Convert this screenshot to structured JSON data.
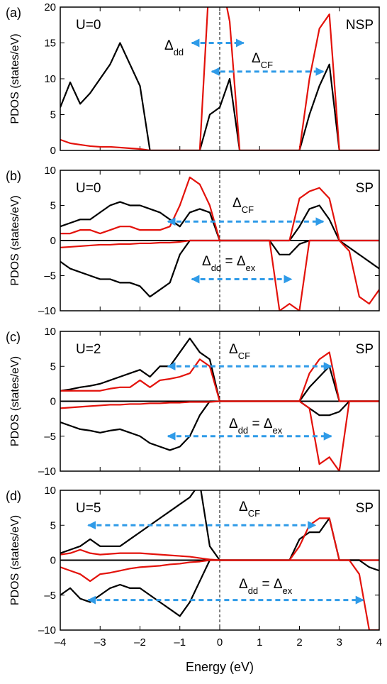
{
  "chart_data": [
    {
      "type": "line",
      "panel_label": "(a)",
      "text_left": "U=0",
      "text_right": "NSP",
      "ylabel": "PDOS (states/eV)",
      "x": [
        -4,
        -3.75,
        -3.5,
        -3.25,
        -3,
        -2.75,
        -2.5,
        -2.25,
        -2,
        -1.75,
        -1.5,
        -1.25,
        -1,
        -0.75,
        -0.5,
        -0.25,
        0,
        0.25,
        0.5,
        0.75,
        1,
        1.25,
        1.5,
        1.75,
        2,
        2.25,
        2.5,
        2.75,
        3,
        3.25,
        3.5,
        3.75,
        4
      ],
      "series": [
        {
          "color": "#000000",
          "values": [
            6,
            9.5,
            6.5,
            8,
            10,
            12,
            15,
            12,
            9,
            0,
            0,
            0,
            0,
            0,
            0,
            5,
            6,
            10,
            0,
            0,
            0,
            0,
            0,
            0,
            0,
            5,
            9,
            12,
            0,
            0,
            0,
            0,
            0
          ]
        },
        {
          "color": "#e3120b",
          "values": [
            1.5,
            1,
            0.8,
            0.6,
            0.5,
            0.5,
            0.4,
            0.3,
            0.2,
            0,
            0,
            0,
            0,
            0,
            0,
            25,
            25,
            18,
            0,
            0,
            0,
            0,
            0,
            0,
            0,
            10,
            17,
            19,
            0,
            0,
            0,
            0,
            0
          ]
        }
      ],
      "arrows": [
        {
          "label": [
            {
              "text": "Δ"
            },
            {
              "text": "dd",
              "sub": true
            }
          ],
          "x": [
            -0.7,
            0.6
          ],
          "y": 15
        },
        {
          "label": [
            {
              "text": "Δ"
            },
            {
              "text": "CF",
              "sub": true
            }
          ],
          "x": [
            -0.2,
            2.6
          ],
          "y": 11
        }
      ],
      "vline": 0,
      "xlim": [
        -4,
        4
      ],
      "xticks": [
        -4,
        -3,
        -2,
        -1,
        0,
        1,
        2,
        3,
        4
      ],
      "ylim": [
        0,
        20
      ],
      "yticks": [
        0,
        5,
        10,
        15,
        20
      ]
    },
    {
      "type": "line",
      "panel_label": "(b)",
      "text_left": "U=0",
      "text_right": "SP",
      "ylabel": "PDOS (states/eV)",
      "x": [
        -4,
        -3.75,
        -3.5,
        -3.25,
        -3,
        -2.75,
        -2.5,
        -2.25,
        -2,
        -1.75,
        -1.5,
        -1.25,
        -1,
        -0.75,
        -0.5,
        -0.25,
        0,
        0.25,
        0.5,
        0.75,
        1,
        1.25,
        1.5,
        1.75,
        2,
        2.25,
        2.5,
        2.75,
        3,
        3.25,
        3.5,
        3.75,
        4
      ],
      "series": [
        {
          "color": "#000000",
          "values": [
            2,
            2.5,
            3,
            3,
            4,
            5,
            5.5,
            5,
            5,
            4.5,
            4,
            3,
            2,
            4,
            4.5,
            4,
            0,
            0,
            0,
            0,
            0,
            0,
            0,
            0,
            2,
            4.5,
            5,
            3,
            0,
            0,
            0,
            0,
            0
          ]
        },
        {
          "color": "#e3120b",
          "values": [
            1,
            1,
            1.5,
            1.5,
            1,
            1.5,
            2,
            2,
            1.5,
            1.5,
            1.5,
            2,
            5,
            9,
            8,
            5,
            0,
            0,
            0,
            0,
            0,
            0,
            0,
            0,
            6,
            7,
            7.5,
            6,
            0,
            0,
            0,
            0,
            0
          ]
        },
        {
          "color": "#000000",
          "values": [
            -3,
            -4,
            -4.5,
            -5,
            -5.5,
            -5.5,
            -6,
            -6,
            -6.5,
            -8,
            -7,
            -6,
            -2,
            0,
            0,
            0,
            0,
            0,
            0,
            0,
            0,
            0,
            -2,
            -2,
            -0.5,
            0,
            0,
            0,
            0,
            -1,
            -2,
            -3,
            -4
          ]
        },
        {
          "color": "#e3120b",
          "values": [
            -1,
            -0.9,
            -0.8,
            -0.7,
            -0.6,
            -0.6,
            -0.5,
            -0.5,
            -0.4,
            -0.4,
            -0.3,
            -0.3,
            -0.2,
            0,
            0,
            0,
            0,
            0,
            0,
            0,
            0,
            0,
            -10,
            -9,
            -10,
            0,
            0,
            0,
            0,
            -1.5,
            -8,
            -9,
            -7
          ]
        }
      ],
      "arrows": [
        {
          "label": [
            {
              "text": "Δ"
            },
            {
              "text": "CF",
              "sub": true
            }
          ],
          "x": [
            -1.3,
            2.6
          ],
          "y": 2.7
        },
        {
          "label": [
            {
              "text": "Δ"
            },
            {
              "text": "dd",
              "sub": true
            },
            {
              "text": " = Δ"
            },
            {
              "text": "ex",
              "sub": true
            }
          ],
          "x": [
            -0.7,
            1.8
          ],
          "y": -5.5
        }
      ],
      "vline": 0,
      "xlim": [
        -4,
        4
      ],
      "xticks": [
        -4,
        -3,
        -2,
        -1,
        0,
        1,
        2,
        3,
        4
      ],
      "ylim": [
        -10,
        10
      ],
      "yticks": [
        {
          "value": -10,
          "label": "–10"
        },
        {
          "value": -5,
          "label": "–5"
        },
        0,
        5,
        10
      ]
    },
    {
      "type": "line",
      "panel_label": "(c)",
      "text_left": "U=2",
      "text_right": "SP",
      "ylabel": "PDOS (states/eV)",
      "x": [
        -4,
        -3.75,
        -3.5,
        -3.25,
        -3,
        -2.75,
        -2.5,
        -2.25,
        -2,
        -1.75,
        -1.5,
        -1.25,
        -1,
        -0.75,
        -0.5,
        -0.25,
        0,
        0.25,
        0.5,
        0.75,
        1,
        1.25,
        1.5,
        1.75,
        2,
        2.25,
        2.5,
        2.75,
        3,
        3.25,
        3.5,
        3.75,
        4
      ],
      "series": [
        {
          "color": "#000000",
          "values": [
            1.5,
            1.7,
            2,
            2.2,
            2.5,
            3,
            3.5,
            4,
            4.5,
            3.5,
            5,
            5,
            7,
            9,
            7,
            6,
            0,
            0,
            0,
            0,
            0,
            0,
            0,
            0,
            0,
            2,
            3.5,
            5,
            0,
            0,
            0,
            0,
            0
          ]
        },
        {
          "color": "#e3120b",
          "values": [
            1.5,
            1.5,
            1.5,
            1.5,
            1.5,
            1.8,
            2,
            2,
            3,
            2,
            3,
            3.2,
            3.5,
            4,
            6,
            5,
            0,
            0,
            0,
            0,
            0,
            0,
            0,
            0,
            0,
            4,
            6,
            7,
            0,
            0,
            0,
            0,
            0
          ]
        },
        {
          "color": "#000000",
          "values": [
            -3,
            -3.5,
            -4,
            -4.2,
            -4.5,
            -4.2,
            -4,
            -4.5,
            -5,
            -6,
            -6.5,
            -7,
            -6.5,
            -5,
            -2,
            0,
            0,
            0,
            0,
            0,
            0,
            0,
            0,
            0,
            0,
            -1,
            -2,
            -2,
            -1.5,
            0,
            0,
            0,
            0
          ]
        },
        {
          "color": "#e3120b",
          "values": [
            -1,
            -0.9,
            -0.8,
            -0.7,
            -0.6,
            -0.5,
            -0.5,
            -0.4,
            -0.4,
            -0.3,
            -0.3,
            -0.2,
            -0.2,
            -0.1,
            -0.1,
            -0.1,
            0,
            0,
            0,
            0,
            0,
            0,
            0,
            0,
            0,
            -1,
            -9,
            -8,
            -10,
            0,
            0,
            0,
            0
          ]
        }
      ],
      "arrows": [
        {
          "label": [
            {
              "text": "Δ"
            },
            {
              "text": "CF",
              "sub": true
            }
          ],
          "x": [
            -1.3,
            2.8
          ],
          "y": 5
        },
        {
          "label": [
            {
              "text": "Δ"
            },
            {
              "text": "dd",
              "sub": true
            },
            {
              "text": " = Δ"
            },
            {
              "text": "ex",
              "sub": true
            }
          ],
          "x": [
            -1.3,
            2.8
          ],
          "y": -5
        }
      ],
      "vline": 0,
      "xlim": [
        -4,
        4
      ],
      "xticks": [
        -4,
        -3,
        -2,
        -1,
        0,
        1,
        2,
        3,
        4
      ],
      "ylim": [
        -10,
        10
      ],
      "yticks": [
        {
          "value": -10,
          "label": "–10"
        },
        {
          "value": -5,
          "label": "–5"
        },
        0,
        5,
        10
      ]
    },
    {
      "type": "line",
      "panel_label": "(d)",
      "text_left": "U=5",
      "text_right": "SP",
      "ylabel": "PDOS (states/eV)",
      "xlabel": "Energy (eV)",
      "x": [
        -4,
        -3.75,
        -3.5,
        -3.25,
        -3,
        -2.75,
        -2.5,
        -2.25,
        -2,
        -1.75,
        -1.5,
        -1.25,
        -1,
        -0.75,
        -0.5,
        -0.25,
        0,
        0.25,
        0.5,
        0.75,
        1,
        1.25,
        1.5,
        1.75,
        2,
        2.25,
        2.5,
        2.75,
        3,
        3.25,
        3.5,
        3.75,
        4
      ],
      "series": [
        {
          "color": "#000000",
          "values": [
            1,
            1.5,
            2,
            3,
            2,
            2,
            2,
            3,
            4,
            5,
            6,
            7,
            8,
            9,
            11,
            2,
            0,
            0,
            0,
            0,
            0,
            0,
            0,
            0,
            3,
            4,
            4,
            6,
            0,
            0,
            0,
            0,
            0
          ]
        },
        {
          "color": "#e3120b",
          "values": [
            0.8,
            1,
            1.5,
            1,
            0.8,
            0.9,
            1,
            1,
            1,
            0.9,
            0.8,
            0.7,
            0.6,
            0.5,
            0.3,
            0.1,
            0,
            0,
            0,
            0,
            0,
            0,
            0,
            0,
            2,
            5,
            6,
            6,
            0,
            0,
            0,
            0,
            0
          ]
        },
        {
          "color": "#000000",
          "values": [
            -5,
            -4,
            -5.5,
            -6,
            -5,
            -4,
            -3.5,
            -4,
            -4,
            -5,
            -6,
            -7,
            -8,
            -6,
            -3,
            0,
            0,
            0,
            0,
            0,
            0,
            0,
            0,
            0,
            0,
            0,
            0,
            0,
            0,
            0,
            0,
            -1,
            -1.5
          ]
        },
        {
          "color": "#e3120b",
          "values": [
            -1,
            -1.5,
            -2,
            -3,
            -2,
            -1.8,
            -1.5,
            -1.2,
            -1,
            -0.9,
            -0.8,
            -0.6,
            -0.5,
            -0.3,
            -0.2,
            0,
            0,
            0,
            0,
            0,
            0,
            0,
            0,
            0,
            0,
            0,
            0,
            0,
            0,
            0,
            -2,
            -10,
            -10
          ]
        }
      ],
      "arrows": [
        {
          "label": [
            {
              "text": "Δ"
            },
            {
              "text": "CF",
              "sub": true
            }
          ],
          "x": [
            -3.3,
            2.4
          ],
          "y": 5
        },
        {
          "label": [
            {
              "text": "Δ"
            },
            {
              "text": "dd",
              "sub": true
            },
            {
              "text": " = Δ"
            },
            {
              "text": "ex",
              "sub": true
            }
          ],
          "x": [
            -3.3,
            3.6
          ],
          "y": -5.7
        }
      ],
      "vline": 0,
      "xlim": [
        -4,
        4
      ],
      "xticks": [
        {
          "value": -4,
          "label": "–4"
        },
        {
          "value": -3,
          "label": "–3"
        },
        {
          "value": -2,
          "label": "–2"
        },
        {
          "value": -1,
          "label": "–1"
        },
        0,
        1,
        2,
        3,
        4
      ],
      "ylim": [
        -10,
        10
      ],
      "yticks": [
        {
          "value": -10,
          "label": "–10"
        },
        {
          "value": -5,
          "label": "–5"
        },
        0,
        5,
        10
      ]
    }
  ]
}
